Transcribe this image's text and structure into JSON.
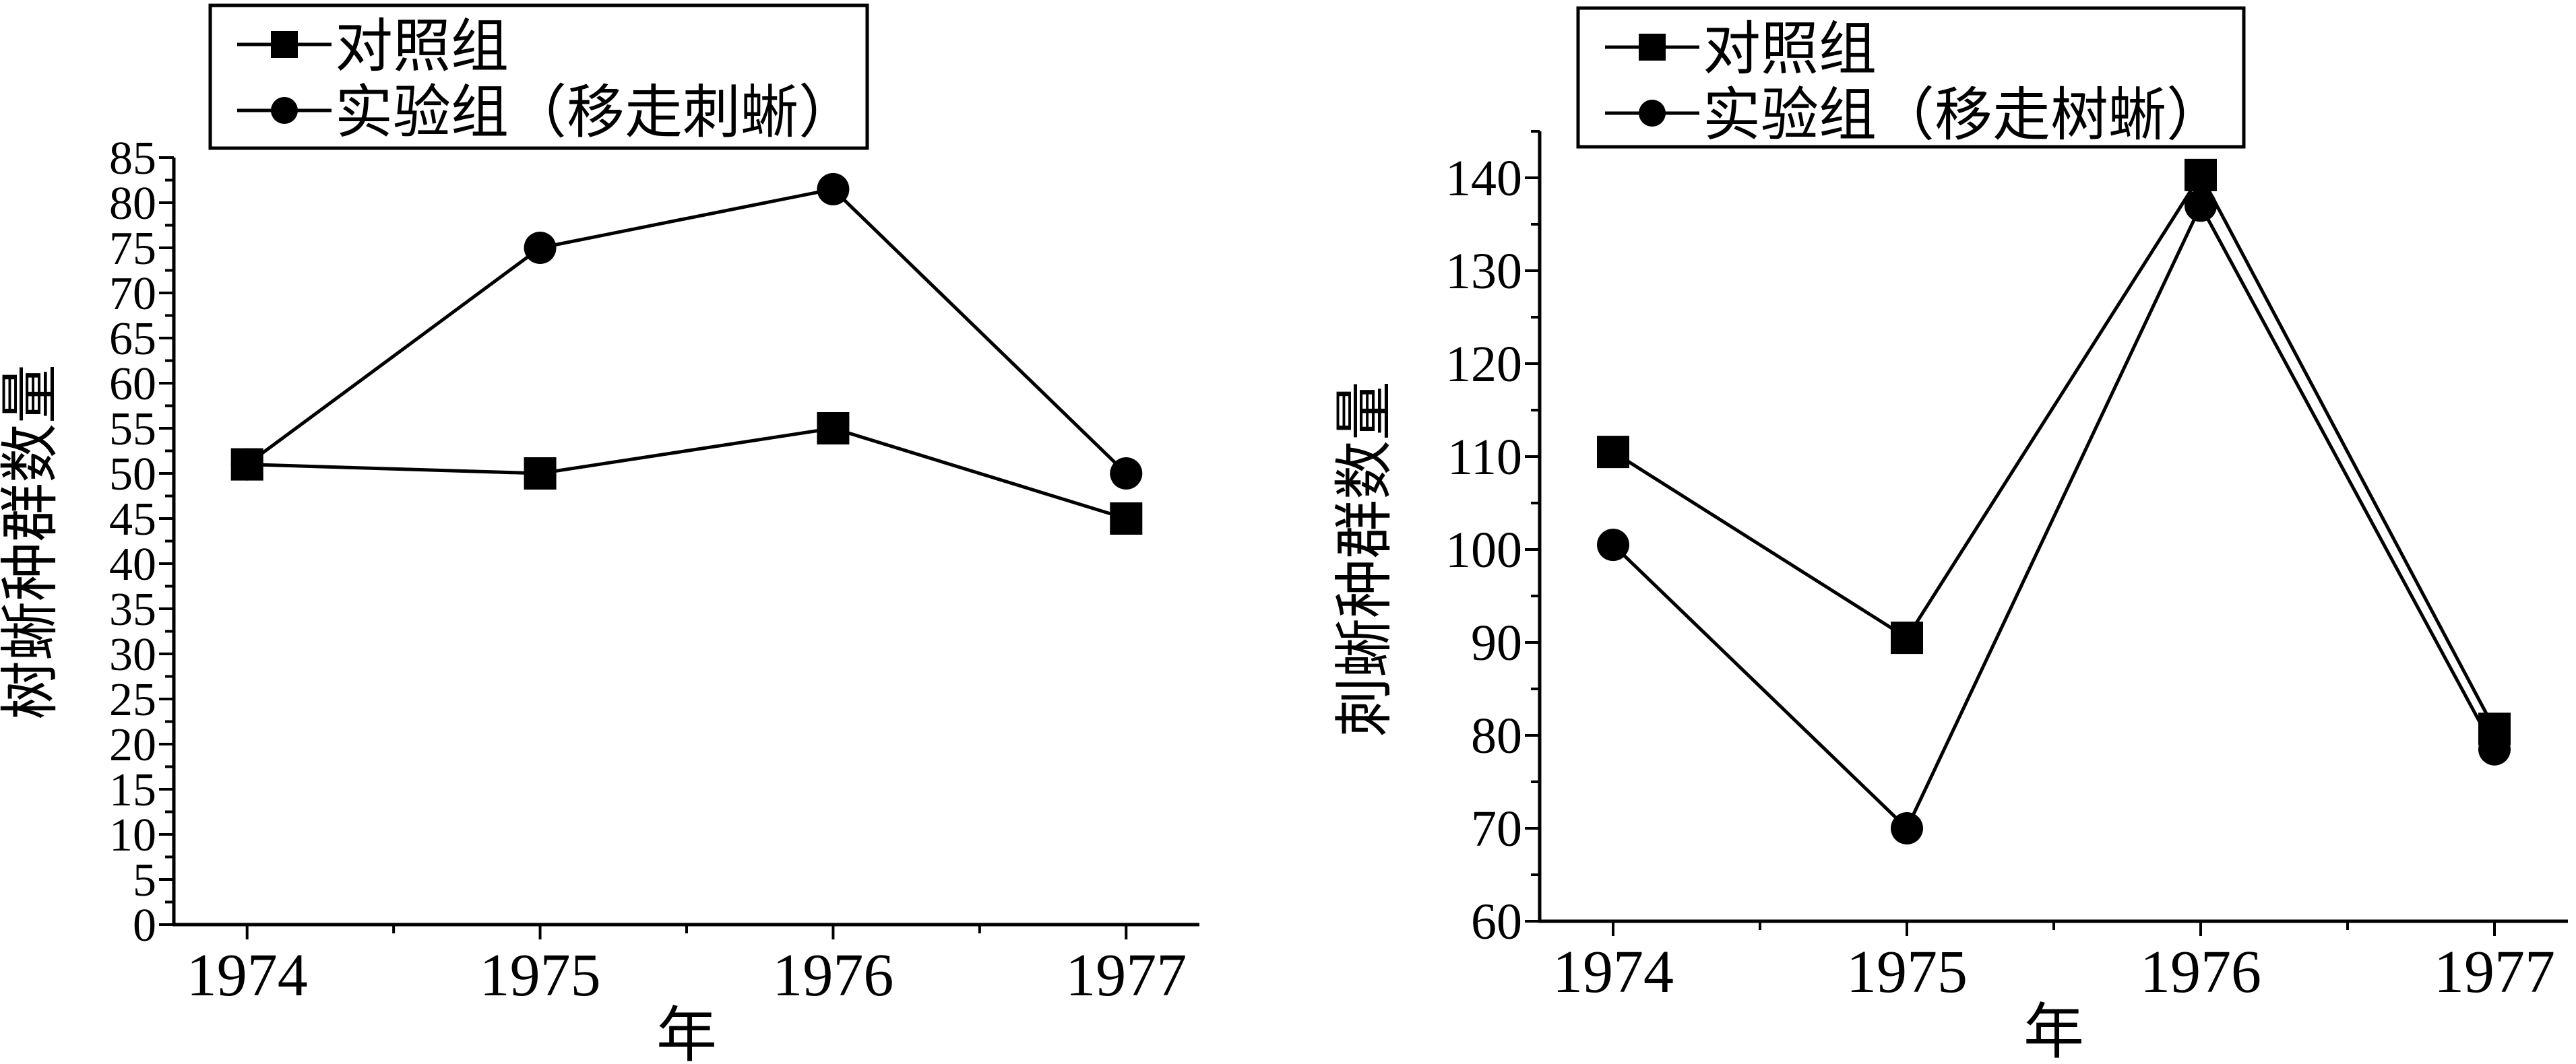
{
  "chart_data": [
    {
      "type": "line",
      "title": "",
      "xlabel": "年",
      "ylabel": "树蜥种群数量",
      "x": [
        1974,
        1975,
        1976,
        1977
      ],
      "xticks": [
        "1974",
        "1975",
        "1976",
        "1977"
      ],
      "xlim": [
        1973.75,
        1977.25
      ],
      "ylim": [
        0,
        85
      ],
      "yticks": [
        0,
        5,
        10,
        15,
        20,
        25,
        30,
        35,
        40,
        45,
        50,
        55,
        60,
        65,
        70,
        75,
        80,
        85
      ],
      "ytick_minor_step": 2.5,
      "grid": false,
      "legend_position": "top-left",
      "series": [
        {
          "name": "对照组",
          "marker": "square",
          "values": [
            51,
            50,
            55,
            45
          ]
        },
        {
          "name": "实验组（移走刺蜥）",
          "marker": "circle",
          "values": [
            51,
            75,
            81.5,
            50
          ]
        }
      ]
    },
    {
      "type": "line",
      "title": "",
      "xlabel": "年",
      "ylabel": "刺蜥种群数量",
      "x": [
        1974,
        1975,
        1976,
        1977
      ],
      "xticks": [
        "1974",
        "1975",
        "1976",
        "1977"
      ],
      "xlim": [
        1973.75,
        1977.25
      ],
      "ylim": [
        60,
        145
      ],
      "yticks": [
        60,
        70,
        80,
        90,
        100,
        110,
        120,
        130,
        140
      ],
      "ytick_minor_step": 5,
      "grid": false,
      "legend_position": "top-left",
      "series": [
        {
          "name": "对照组",
          "marker": "square",
          "values": [
            110.5,
            90.5,
            140.3,
            80.7
          ]
        },
        {
          "name": "实验组（移走树蜥）",
          "marker": "circle",
          "values": [
            100.5,
            70,
            137,
            78.5
          ]
        }
      ]
    }
  ]
}
